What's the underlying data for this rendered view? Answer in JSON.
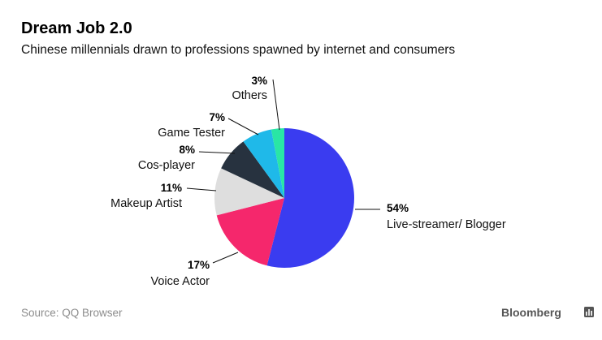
{
  "header": {
    "title": "Dream Job 2.0",
    "subtitle": "Chinese millennials drawn to professions spawned by internet and consumers"
  },
  "footer": {
    "source": "Source: QQ Browser",
    "brand": "Bloomberg",
    "brand_icon": "bar-chart-icon"
  },
  "chart_data": {
    "type": "pie",
    "title": "Dream Job 2.0",
    "subtitle": "Chinese millennials drawn to professions spawned by internet and consumers",
    "unit": "%",
    "slices": [
      {
        "label": "Live-streamer/ Blogger",
        "pct_label": "54%",
        "value": 54,
        "color": "#3a3cf0"
      },
      {
        "label": "Voice Actor",
        "pct_label": "17%",
        "value": 17,
        "color": "#f5276c"
      },
      {
        "label": "Makeup Artist",
        "pct_label": "11%",
        "value": 11,
        "color": "#dedede"
      },
      {
        "label": "Cos-player",
        "pct_label": "8%",
        "value": 8,
        "color": "#27323f"
      },
      {
        "label": "Game Tester",
        "pct_label": "7%",
        "value": 7,
        "color": "#1fb9e9"
      },
      {
        "label": "Others",
        "pct_label": "3%",
        "value": 3,
        "color": "#29e6a5"
      }
    ]
  }
}
